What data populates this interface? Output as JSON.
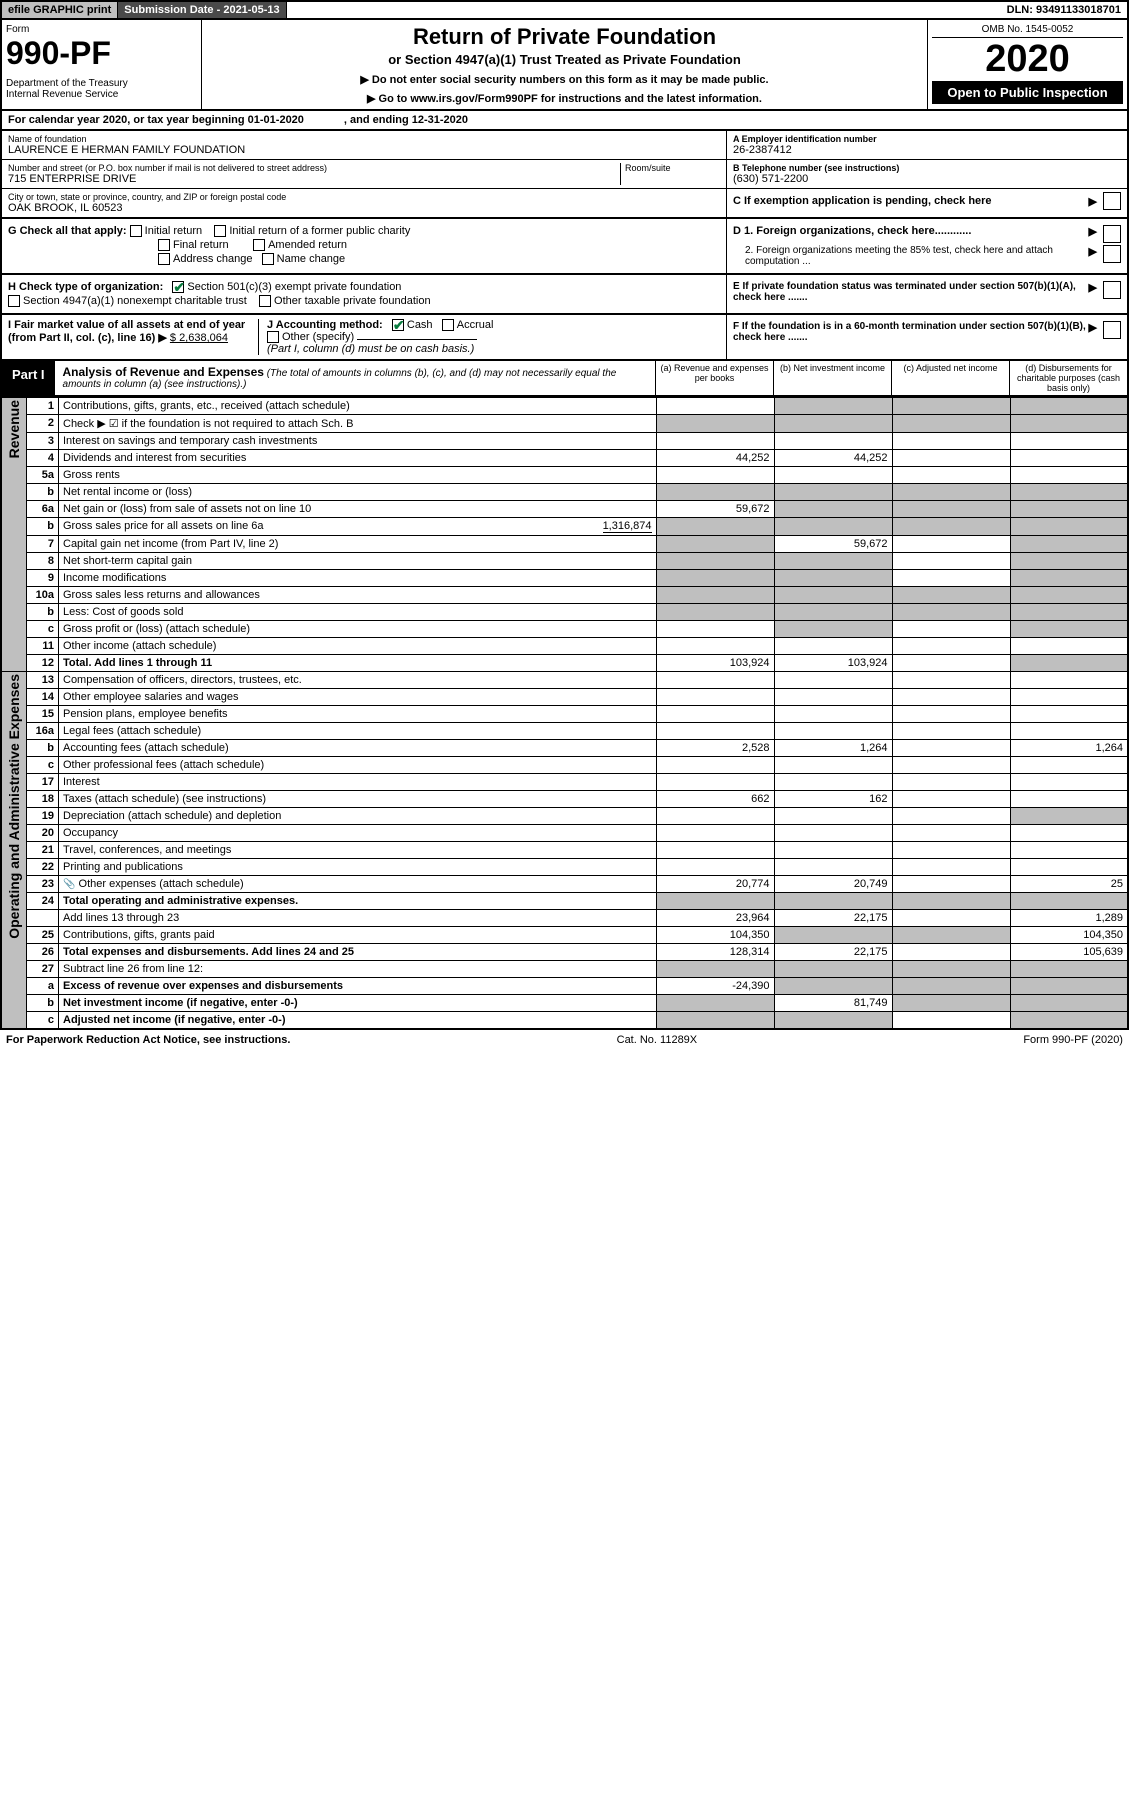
{
  "topbar": {
    "efile": "efile GRAPHIC print",
    "subdate_lbl": "Submission Date - ",
    "subdate": "2021-05-13",
    "dln_lbl": "DLN: ",
    "dln": "93491133018701"
  },
  "header": {
    "form_lbl": "Form",
    "form_num": "990-PF",
    "dept": "Department of the Treasury",
    "irs": "Internal Revenue Service",
    "title": "Return of Private Foundation",
    "sub": "or Section 4947(a)(1) Trust Treated as Private Foundation",
    "note1": "▶ Do not enter social security numbers on this form as it may be made public.",
    "note2": "▶ Go to www.irs.gov/Form990PF for instructions and the latest information.",
    "omb": "OMB No. 1545-0052",
    "year": "2020",
    "open": "Open to Public Inspection"
  },
  "calrow": {
    "a": "For calendar year 2020, or tax year beginning 01-01-2020",
    "b": ", and ending 12-31-2020"
  },
  "info": {
    "name_lbl": "Name of foundation",
    "name": "LAURENCE E HERMAN FAMILY FOUNDATION",
    "addr_lbl": "Number and street (or P.O. box number if mail is not delivered to street address)",
    "room_lbl": "Room/suite",
    "addr": "715 ENTERPRISE DRIVE",
    "city_lbl": "City or town, state or province, country, and ZIP or foreign postal code",
    "city": "OAK BROOK, IL  60523",
    "ein_lbl": "A Employer identification number",
    "ein": "26-2387412",
    "tel_lbl": "B Telephone number (see instructions)",
    "tel": "(630) 571-2200",
    "c_lbl": "C If exemption application is pending, check here"
  },
  "g": {
    "lbl": "G Check all that apply:",
    "opts": [
      "Initial return",
      "Initial return of a former public charity",
      "Final return",
      "Amended return",
      "Address change",
      "Name change"
    ]
  },
  "h": {
    "lbl": "H Check type of organization:",
    "opt1": "Section 501(c)(3) exempt private foundation",
    "opt2": "Section 4947(a)(1) nonexempt charitable trust",
    "opt3": "Other taxable private foundation"
  },
  "i": {
    "lbl": "I Fair market value of all assets at end of year (from Part II, col. (c), line 16) ▶",
    "val": "$  2,638,064"
  },
  "j": {
    "lbl": "J Accounting method:",
    "cash": "Cash",
    "accr": "Accrual",
    "other": "Other (specify)",
    "note": "(Part I, column (d) must be on cash basis.)"
  },
  "d": {
    "d1": "D 1. Foreign organizations, check here............",
    "d2": "2. Foreign organizations meeting the 85% test, check here and attach computation ..."
  },
  "e": {
    "lbl": "E  If private foundation status was terminated under section 507(b)(1)(A), check here ......."
  },
  "f": {
    "lbl": "F  If the foundation is in a 60-month termination under section 507(b)(1)(B), check here ......."
  },
  "part1": {
    "lbl": "Part I",
    "title": "Analysis of Revenue and Expenses",
    "note": "(The total of amounts in columns (b), (c), and (d) may not necessarily equal the amounts in column (a) (see instructions).)",
    "ca": "(a)   Revenue and expenses per books",
    "cb": "(b)   Net investment income",
    "cc": "(c)   Adjusted net income",
    "cd": "(d)   Disbursements for charitable purposes (cash basis only)"
  },
  "rows": {
    "r1": {
      "ln": "1",
      "d": "Contributions, gifts, grants, etc., received (attach schedule)"
    },
    "r2": {
      "ln": "2",
      "d": "Check ▶ ☑ if the foundation is not required to attach Sch. B"
    },
    "r3": {
      "ln": "3",
      "d": "Interest on savings and temporary cash investments"
    },
    "r4": {
      "ln": "4",
      "d": "Dividends and interest from securities",
      "a": "44,252",
      "b": "44,252"
    },
    "r5a": {
      "ln": "5a",
      "d": "Gross rents"
    },
    "r5b": {
      "ln": "b",
      "d": "Net rental income or (loss)"
    },
    "r6a": {
      "ln": "6a",
      "d": "Net gain or (loss) from sale of assets not on line 10",
      "a": "59,672"
    },
    "r6b": {
      "ln": "b",
      "d": "Gross sales price for all assets on line 6a",
      "inline": "1,316,874"
    },
    "r7": {
      "ln": "7",
      "d": "Capital gain net income (from Part IV, line 2)",
      "b": "59,672"
    },
    "r8": {
      "ln": "8",
      "d": "Net short-term capital gain"
    },
    "r9": {
      "ln": "9",
      "d": "Income modifications"
    },
    "r10a": {
      "ln": "10a",
      "d": "Gross sales less returns and allowances"
    },
    "r10b": {
      "ln": "b",
      "d": "Less: Cost of goods sold"
    },
    "r10c": {
      "ln": "c",
      "d": "Gross profit or (loss) (attach schedule)"
    },
    "r11": {
      "ln": "11",
      "d": "Other income (attach schedule)"
    },
    "r12": {
      "ln": "12",
      "d": "Total. Add lines 1 through 11",
      "a": "103,924",
      "b": "103,924"
    },
    "r13": {
      "ln": "13",
      "d": "Compensation of officers, directors, trustees, etc."
    },
    "r14": {
      "ln": "14",
      "d": "Other employee salaries and wages"
    },
    "r15": {
      "ln": "15",
      "d": "Pension plans, employee benefits"
    },
    "r16a": {
      "ln": "16a",
      "d": "Legal fees (attach schedule)"
    },
    "r16b": {
      "ln": "b",
      "d": "Accounting fees (attach schedule)",
      "a": "2,528",
      "b": "1,264",
      "dd": "1,264"
    },
    "r16c": {
      "ln": "c",
      "d": "Other professional fees (attach schedule)"
    },
    "r17": {
      "ln": "17",
      "d": "Interest"
    },
    "r18": {
      "ln": "18",
      "d": "Taxes (attach schedule) (see instructions)",
      "a": "662",
      "b": "162"
    },
    "r19": {
      "ln": "19",
      "d": "Depreciation (attach schedule) and depletion"
    },
    "r20": {
      "ln": "20",
      "d": "Occupancy"
    },
    "r21": {
      "ln": "21",
      "d": "Travel, conferences, and meetings"
    },
    "r22": {
      "ln": "22",
      "d": "Printing and publications"
    },
    "r23": {
      "ln": "23",
      "d": "Other expenses (attach schedule)",
      "a": "20,774",
      "b": "20,749",
      "dd": "25",
      "icon": "📎"
    },
    "r24": {
      "ln": "24",
      "d": "Total operating and administrative expenses."
    },
    "r24b": {
      "ln": "",
      "d": "Add lines 13 through 23",
      "a": "23,964",
      "b": "22,175",
      "dd": "1,289"
    },
    "r25": {
      "ln": "25",
      "d": "Contributions, gifts, grants paid",
      "a": "104,350",
      "dd": "104,350"
    },
    "r26": {
      "ln": "26",
      "d": "Total expenses and disbursements. Add lines 24 and 25",
      "a": "128,314",
      "b": "22,175",
      "dd": "105,639"
    },
    "r27": {
      "ln": "27",
      "d": "Subtract line 26 from line 12:"
    },
    "r27a": {
      "ln": "a",
      "d": "Excess of revenue over expenses and disbursements",
      "a": "-24,390"
    },
    "r27b": {
      "ln": "b",
      "d": "Net investment income (if negative, enter -0-)",
      "b": "81,749"
    },
    "r27c": {
      "ln": "c",
      "d": "Adjusted net income (if negative, enter -0-)"
    }
  },
  "sections": {
    "rev": "Revenue",
    "exp": "Operating and Administrative Expenses"
  },
  "footer": {
    "l": "For Paperwork Reduction Act Notice, see instructions.",
    "m": "Cat. No. 11289X",
    "r": "Form 990-PF (2020)"
  }
}
